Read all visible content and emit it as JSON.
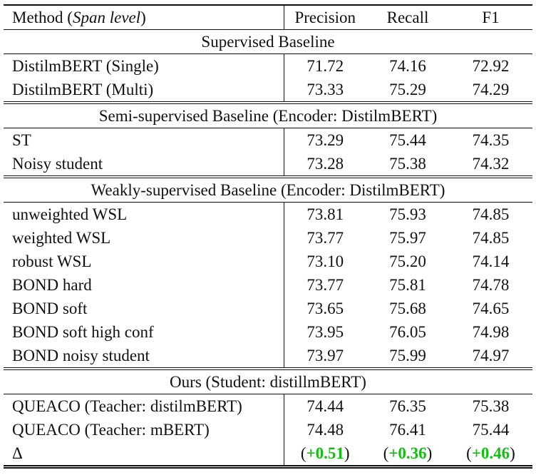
{
  "table": {
    "header": {
      "method_prefix": "Method (",
      "method_em": "Span level",
      "method_suffix": ")",
      "precision": "Precision",
      "recall": "Recall",
      "f1": "F1"
    },
    "sections": [
      {
        "title": "Supervised Baseline",
        "rows": [
          {
            "method": "DistilmBERT (Single)",
            "precision": "71.72",
            "recall": "74.16",
            "f1": "72.92",
            "bold": []
          },
          {
            "method": "DistilmBERT (Multi)",
            "precision": "73.33",
            "recall": "75.29",
            "f1": "74.29",
            "bold": []
          }
        ]
      },
      {
        "title": "Semi-supervised Baseline (Encoder: DistilmBERT)",
        "rows": [
          {
            "method": "ST",
            "precision": "73.29",
            "recall": "75.44",
            "f1": "74.35",
            "bold": []
          },
          {
            "method": "Noisy student",
            "precision": "73.28",
            "recall": "75.38",
            "f1": "74.32",
            "bold": []
          }
        ]
      },
      {
        "title": "Weakly-supervised Baseline (Encoder: DistilmBERT)",
        "rows": [
          {
            "method": "unweighted WSL",
            "precision": "73.81",
            "recall": "75.93",
            "f1": "74.85",
            "bold": []
          },
          {
            "method": "weighted WSL",
            "precision": "73.77",
            "recall": "75.97",
            "f1": "74.85",
            "bold": []
          },
          {
            "method": "robust WSL",
            "precision": "73.10",
            "recall": "75.20",
            "f1": "74.14",
            "bold": []
          },
          {
            "method": "BOND hard",
            "precision": "73.77",
            "recall": "75.81",
            "f1": "74.78",
            "bold": []
          },
          {
            "method": "BOND soft",
            "precision": "73.65",
            "recall": "75.68",
            "f1": "74.65",
            "bold": []
          },
          {
            "method": "BOND soft high conf",
            "precision": "73.95",
            "recall": "76.05",
            "f1": "74.98",
            "bold": [
              "recall",
              "f1"
            ]
          },
          {
            "method": "BOND noisy student",
            "precision": "73.97",
            "recall": "75.99",
            "f1": "74.97",
            "bold": [
              "precision"
            ]
          }
        ]
      },
      {
        "title": "Ours (Student: distillmBERT)",
        "rows": [
          {
            "method": "QUEACO (Teacher: distilmBERT)",
            "precision": "74.44",
            "recall": "76.35",
            "f1": "75.38",
            "bold": []
          },
          {
            "method": "QUEACO (Teacher: mBERT)",
            "precision": "74.48",
            "recall": "76.41",
            "f1": "75.44",
            "bold": [
              "precision",
              "recall",
              "f1"
            ]
          }
        ]
      }
    ],
    "delta_row": {
      "method": "Δ",
      "precision": "+0.51",
      "recall": "+0.36",
      "f1": "+0.46",
      "gain_color": "#11c011"
    }
  }
}
